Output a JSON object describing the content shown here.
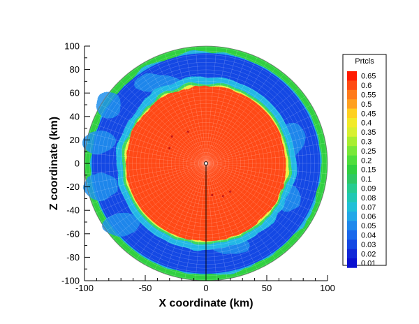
{
  "chart_data": {
    "type": "heatmap",
    "title": "",
    "xlabel": "X coordinate (km)",
    "ylabel": "Z coordinate (km)",
    "xlim": [
      -100,
      100
    ],
    "ylim": [
      -100,
      100
    ],
    "x_ticks": [
      -100,
      -50,
      0,
      50,
      100
    ],
    "y_ticks": [
      -100,
      -80,
      -60,
      -40,
      -20,
      0,
      20,
      40,
      60,
      80,
      100
    ],
    "x_tick_labels": [
      "-100",
      "-50",
      "0",
      "50",
      "100"
    ],
    "y_tick_labels": [
      "-100",
      "-80",
      "-60",
      "-40",
      "-20",
      "0",
      "20",
      "40",
      "60",
      "80",
      "100"
    ],
    "grid": false,
    "legend": {
      "title": "Prtcls",
      "placement": "right",
      "levels": [
        "0.65",
        "0.6",
        "0.55",
        "0.5",
        "0.45",
        "0.4",
        "0.35",
        "0.3",
        "0.25",
        "0.2",
        "0.15",
        "0.1",
        "0.09",
        "0.08",
        "0.07",
        "0.06",
        "0.05",
        "0.04",
        "0.03",
        "0.02",
        "0.01"
      ],
      "colors": [
        "#ff1a00",
        "#ff4a12",
        "#ff7a1a",
        "#ffa020",
        "#ffd020",
        "#f2ea28",
        "#d8f030",
        "#a8ee30",
        "#78e838",
        "#4ede3c",
        "#30d040",
        "#2ec864",
        "#26cc90",
        "#20c8b4",
        "#20c0d8",
        "#22a8e8",
        "#1e88ec",
        "#1a68ec",
        "#1448e4",
        "#1028d8",
        "#0a10d0"
      ]
    },
    "regions": [
      {
        "name": "outer ring",
        "r_inner": 95,
        "r_outer": 100,
        "value": 0.15
      },
      {
        "name": "blue band",
        "r_inner": 70,
        "r_outer": 95,
        "value": 0.03
      },
      {
        "name": "core",
        "r_inner": 0,
        "r_outer": 66,
        "value": 0.6
      }
    ],
    "center_marker": {
      "x": 0,
      "z": 0
    }
  }
}
